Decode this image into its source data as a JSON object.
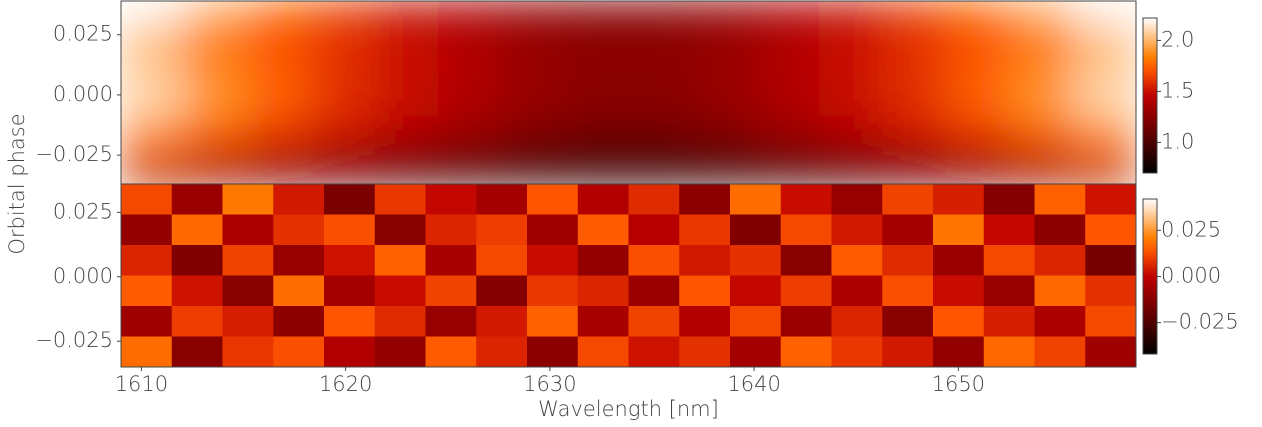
{
  "chart_data": [
    {
      "type": "heatmap",
      "colormap": "gist_heat",
      "ylabel": "Orbital phase",
      "xlim": [
        1609,
        1658.7
      ],
      "ylim": [
        -0.037,
        0.039
      ],
      "yticks": [
        {
          "value": 0.025,
          "label": "0.025"
        },
        {
          "value": 0,
          "label": "0.000"
        },
        {
          "value": -0.025,
          "label": "−0.025"
        }
      ],
      "clim": [
        0.7,
        2.22
      ],
      "cticks": [
        {
          "value": 1.0,
          "label": "1.0"
        },
        1.5,
        {
          "value": 2.0,
          "label": "2.0"
        }
      ],
      "z": [
        [
          2.2,
          2.0,
          1.8,
          1.65,
          1.5,
          1.4,
          1.3,
          1.25,
          1.25,
          1.3,
          1.4,
          1.5,
          1.65,
          1.8,
          2.0,
          2.2
        ],
        [
          2.05,
          1.85,
          1.7,
          1.6,
          1.5,
          1.4,
          1.3,
          1.25,
          1.25,
          1.3,
          1.4,
          1.5,
          1.6,
          1.7,
          1.85,
          2.05
        ],
        [
          2.0,
          1.8,
          1.7,
          1.6,
          1.5,
          1.4,
          1.3,
          1.25,
          1.25,
          1.3,
          1.4,
          1.5,
          1.6,
          1.7,
          1.8,
          2.0
        ],
        [
          2.1,
          1.9,
          1.75,
          1.6,
          1.5,
          1.4,
          1.3,
          1.25,
          1.25,
          1.3,
          1.4,
          1.5,
          1.6,
          1.75,
          1.9,
          2.1
        ],
        [
          2.1,
          1.9,
          1.75,
          1.6,
          1.5,
          1.4,
          1.3,
          1.25,
          1.25,
          1.3,
          1.4,
          1.5,
          1.6,
          1.75,
          1.9,
          2.1
        ],
        [
          1.95,
          1.8,
          1.65,
          1.55,
          1.45,
          1.35,
          1.25,
          1.2,
          1.2,
          1.25,
          1.35,
          1.45,
          1.55,
          1.65,
          1.8,
          1.95
        ],
        [
          1.75,
          1.6,
          1.5,
          1.4,
          1.3,
          1.2,
          1.1,
          1.05,
          1.05,
          1.1,
          1.2,
          1.3,
          1.4,
          1.5,
          1.6,
          1.75
        ],
        [
          1.4,
          1.3,
          1.2,
          1.1,
          1.0,
          0.95,
          0.9,
          0.85,
          0.85,
          0.9,
          0.95,
          1.0,
          1.1,
          1.2,
          1.3,
          1.4
        ]
      ]
    },
    {
      "type": "heatmap",
      "colormap": "gist_heat",
      "xlabel": "Wavelength [nm]",
      "xlim": [
        1609,
        1658.7
      ],
      "xticks": [
        1610,
        1620,
        1630,
        1640,
        1650
      ],
      "ylim": [
        -0.035,
        0.036
      ],
      "yticks": [
        {
          "value": 0.025,
          "label": "0.025"
        },
        {
          "value": 0,
          "label": "0.000"
        },
        {
          "value": -0.025,
          "label": "−0.025"
        }
      ],
      "clim": [
        -0.042,
        0.042
      ],
      "cticks": [
        {
          "value": 0.025,
          "label": "0.025"
        },
        {
          "value": 0,
          "label": "0.000"
        },
        {
          "value": -0.025,
          "label": "−0.025"
        }
      ],
      "z": [
        [
          0.012,
          -0.008,
          0.02,
          0.004,
          -0.015,
          0.009,
          0.001,
          -0.006,
          0.014,
          -0.003,
          0.007,
          -0.011,
          0.018,
          0.002,
          -0.009,
          0.011,
          0.005,
          -0.013,
          0.016,
          0.003
        ],
        [
          -0.01,
          0.017,
          -0.004,
          0.008,
          0.013,
          -0.012,
          0.006,
          0.01,
          -0.007,
          0.015,
          -0.002,
          0.009,
          -0.014,
          0.012,
          0.004,
          -0.006,
          0.019,
          0.001,
          -0.011,
          0.014
        ],
        [
          0.006,
          -0.014,
          0.011,
          -0.009,
          0.003,
          0.016,
          -0.005,
          0.012,
          0.002,
          -0.01,
          0.013,
          0.004,
          0.008,
          -0.012,
          0.015,
          0.007,
          -0.008,
          0.012,
          0.006,
          -0.016
        ],
        [
          0.015,
          0.003,
          -0.012,
          0.018,
          -0.006,
          0.002,
          0.011,
          -0.013,
          0.009,
          0.006,
          -0.008,
          0.014,
          0.001,
          0.01,
          -0.004,
          0.013,
          0.002,
          -0.009,
          0.017,
          0.008
        ],
        [
          -0.007,
          0.01,
          0.005,
          -0.011,
          0.014,
          0.007,
          -0.009,
          0.004,
          0.016,
          -0.005,
          0.011,
          -0.003,
          0.012,
          -0.008,
          0.006,
          -0.012,
          0.014,
          0.005,
          -0.004,
          0.012
        ],
        [
          0.018,
          -0.012,
          0.009,
          0.013,
          -0.003,
          -0.01,
          0.015,
          0.006,
          -0.011,
          0.012,
          0.003,
          0.008,
          -0.006,
          0.016,
          0.009,
          0.004,
          -0.01,
          0.017,
          0.011,
          -0.007
        ]
      ]
    }
  ]
}
